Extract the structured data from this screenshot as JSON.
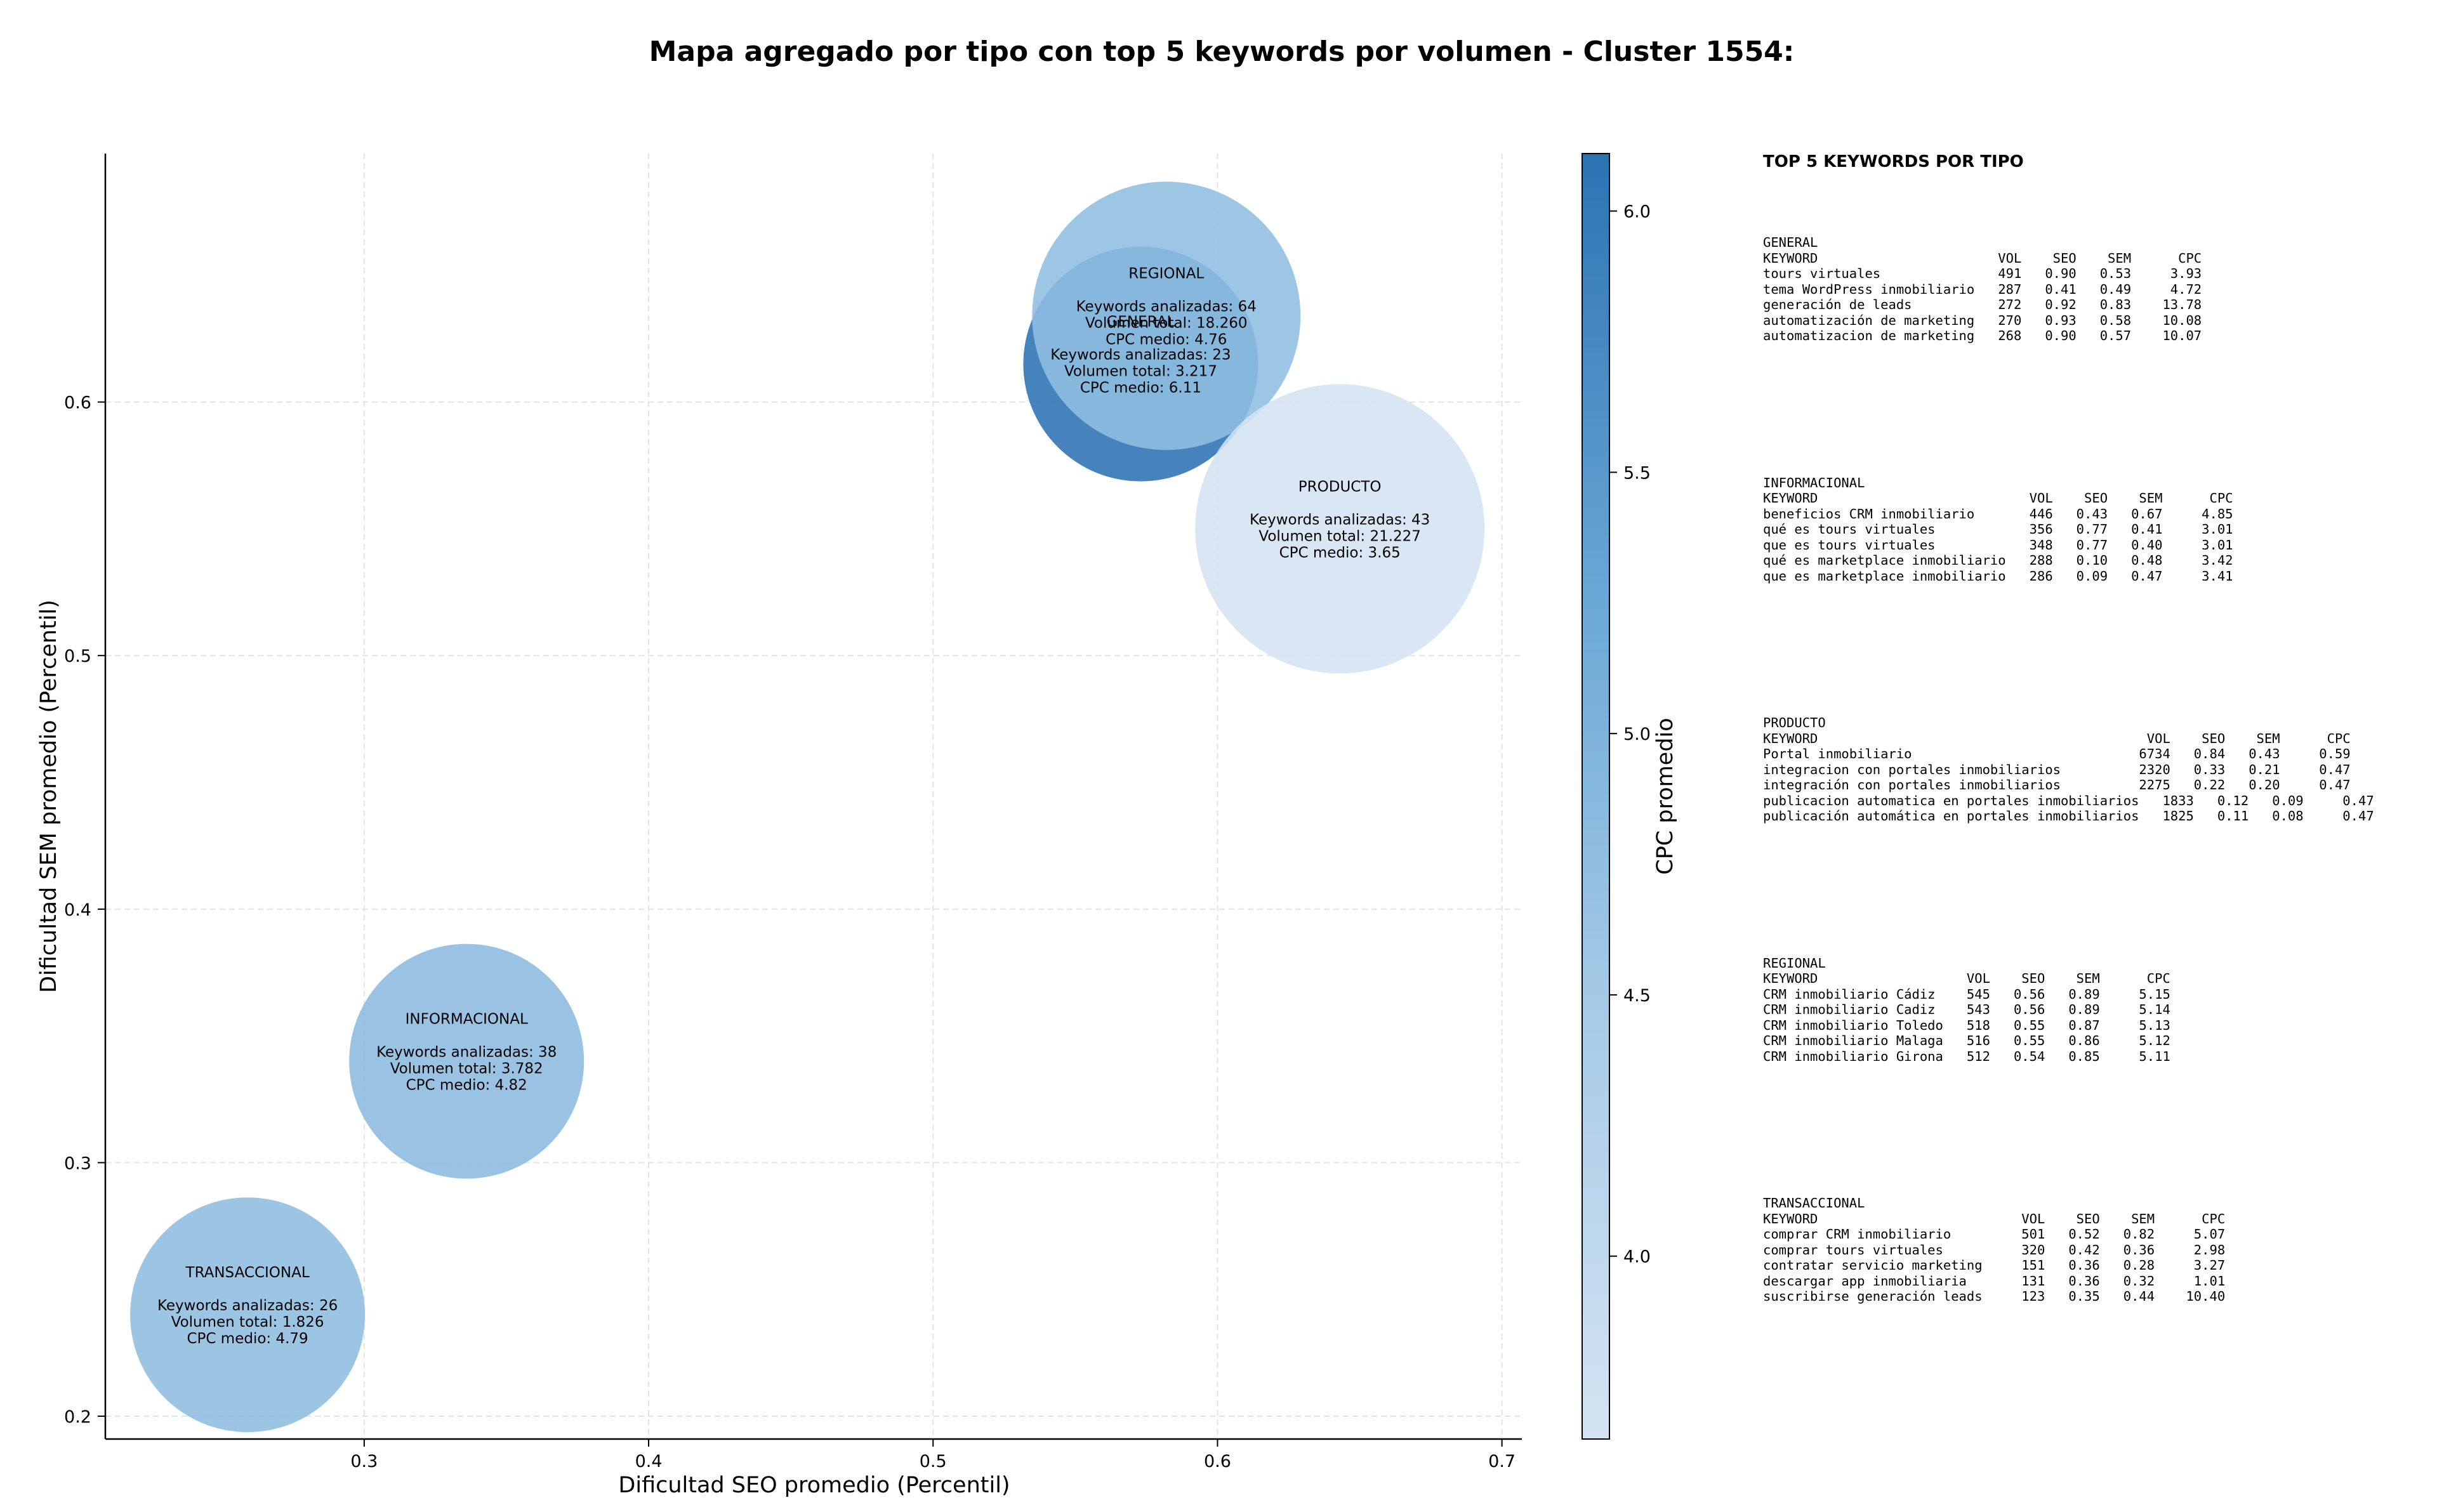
{
  "chart_data": {
    "type": "scatter",
    "title": "Mapa agregado por tipo con top 5 keywords por volumen - Cluster 1554:",
    "xlabel": "Dificultad SEO promedio (Percentil)",
    "ylabel": "Dificultad SEM promedio (Percentil)",
    "xlim": [
      0.209,
      0.707
    ],
    "ylim": [
      0.191,
      0.698
    ],
    "xticks": [
      "0.3",
      "0.4",
      "0.5",
      "0.6",
      "0.7"
    ],
    "yticks": [
      "0.2",
      "0.3",
      "0.4",
      "0.5",
      "0.6"
    ],
    "grid": true,
    "colorbar": {
      "label": "CPC promedio",
      "range": [
        3.65,
        6.11
      ],
      "ticks": [
        "4.0",
        "4.5",
        "5.0",
        "5.5",
        "6.0"
      ],
      "color_low": "#d4e3f2",
      "color_high": "#2c72b3"
    },
    "bubbles": [
      {
        "name": "GENERAL",
        "x": 0.573,
        "y": 0.615,
        "count_label": "Keywords analizadas: 23",
        "volume": 3217,
        "volume_label": "Volumen total: 3.217",
        "cpc": 6.11,
        "cpc_label": "CPC medio: 6.11"
      },
      {
        "name": "REGIONAL",
        "x": 0.582,
        "y": 0.634,
        "count_label": "Keywords analizadas: 64",
        "volume": 18260,
        "volume_label": "Volumen total: 18.260",
        "cpc": 4.76,
        "cpc_label": "CPC medio: 4.76"
      },
      {
        "name": "PRODUCTO",
        "x": 0.643,
        "y": 0.55,
        "count_label": "Keywords analizadas: 43",
        "volume": 21227,
        "volume_label": "Volumen total: 21.227",
        "cpc": 3.65,
        "cpc_label": "CPC medio: 3.65"
      },
      {
        "name": "INFORMACIONAL",
        "x": 0.336,
        "y": 0.34,
        "count_label": "Keywords analizadas: 38",
        "volume": 3782,
        "volume_label": "Volumen total: 3.782",
        "cpc": 4.82,
        "cpc_label": "CPC medio: 4.82"
      },
      {
        "name": "TRANSACCIONAL",
        "x": 0.259,
        "y": 0.24,
        "count_label": "Keywords analizadas: 26",
        "volume": 1826,
        "volume_label": "Volumen total: 1.826",
        "cpc": 4.79,
        "cpc_label": "CPC medio: 4.79"
      }
    ]
  },
  "keyword_panel": {
    "title": "TOP 5 KEYWORDS POR TIPO",
    "sections": [
      {
        "name": "GENERAL",
        "text": "GENERAL\nKEYWORD                       VOL    SEO    SEM      CPC\ntours virtuales               491   0.90   0.53     3.93\ntema WordPress inmobiliario   287   0.41   0.49     4.72\ngeneración de leads           272   0.92   0.83    13.78\nautomatización de marketing   270   0.93   0.58    10.08\nautomatizacion de marketing   268   0.90   0.57    10.07"
      },
      {
        "name": "INFORMACIONAL",
        "text": "INFORMACIONAL\nKEYWORD                           VOL    SEO    SEM      CPC\nbeneficios CRM inmobiliario       446   0.43   0.67     4.85\nqué es tours virtuales            356   0.77   0.41     3.01\nque es tours virtuales            348   0.77   0.40     3.01\nqué es marketplace inmobiliario   288   0.10   0.48     3.42\nque es marketplace inmobiliario   286   0.09   0.47     3.41"
      },
      {
        "name": "PRODUCTO",
        "text": "PRODUCTO\nKEYWORD                                          VOL    SEO    SEM      CPC\nPortal inmobiliario                             6734   0.84   0.43     0.59\nintegracion con portales inmobiliarios          2320   0.33   0.21     0.47\nintegración con portales inmobiliarios          2275   0.22   0.20     0.47\npublicacion automatica en portales inmobiliarios   1833   0.12   0.09     0.47\npublicación automática en portales inmobiliarios   1825   0.11   0.08     0.47"
      },
      {
        "name": "REGIONAL",
        "text": "REGIONAL\nKEYWORD                   VOL    SEO    SEM      CPC\nCRM inmobiliario Cádiz    545   0.56   0.89     5.15\nCRM inmobiliario Cadiz    543   0.56   0.89     5.14\nCRM inmobiliario Toledo   518   0.55   0.87     5.13\nCRM inmobiliario Malaga   516   0.55   0.86     5.12\nCRM inmobiliario Girona   512   0.54   0.85     5.11"
      },
      {
        "name": "TRANSACCIONAL",
        "text": "TRANSACCIONAL\nKEYWORD                          VOL    SEO    SEM      CPC\ncomprar CRM inmobiliario         501   0.52   0.82     5.07\ncomprar tours virtuales          320   0.42   0.36     2.98\ncontratar servicio marketing     151   0.36   0.28     3.27\ndescargar app inmobiliaria       131   0.36   0.32     1.01\nsuscribirse generación leads     123   0.35   0.44    10.40"
      }
    ]
  }
}
